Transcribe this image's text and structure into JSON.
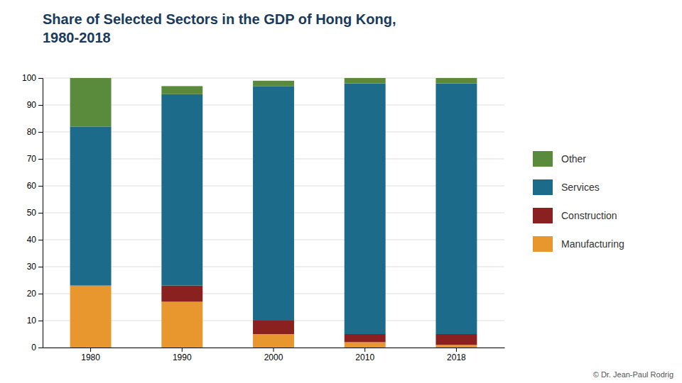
{
  "chart_data": {
    "type": "bar",
    "stacked": true,
    "title": "Share of Selected Sectors in the GDP of Hong Kong,\n1980-2018",
    "categories": [
      "1980",
      "1990",
      "2000",
      "2010",
      "2018"
    ],
    "series": [
      {
        "name": "Manufacturing",
        "color": "#e8962e",
        "values": [
          23,
          17,
          5,
          2,
          1
        ]
      },
      {
        "name": "Construction",
        "color": "#8b2020",
        "values": [
          0,
          6,
          5,
          3,
          4
        ]
      },
      {
        "name": "Services",
        "color": "#1c6b8a",
        "values": [
          59,
          71,
          87,
          93,
          93
        ]
      },
      {
        "name": "Other",
        "color": "#5a8a3c",
        "values": [
          18,
          3,
          2,
          2,
          2
        ]
      }
    ],
    "ylim": [
      0,
      100
    ],
    "yticks": [
      0,
      10,
      20,
      30,
      40,
      50,
      60,
      70,
      80,
      90,
      100
    ],
    "grid": true,
    "legend": "right",
    "annotations": [
      "© Dr. Jean-Paul Rodrig"
    ]
  }
}
